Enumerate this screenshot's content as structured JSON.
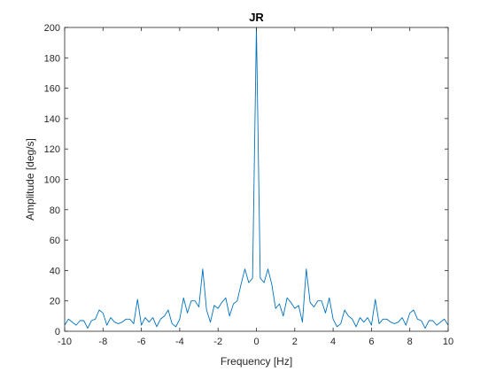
{
  "chart_data": {
    "type": "line",
    "title": "JR",
    "xlabel": "Frequency [Hz]",
    "ylabel": "Amplitude [deg/s]",
    "xlim": [
      -10,
      10
    ],
    "ylim": [
      0,
      200
    ],
    "grid": false,
    "x_ticks": [
      -10,
      -8,
      -6,
      -4,
      -2,
      0,
      2,
      4,
      6,
      8,
      10
    ],
    "y_ticks": [
      0,
      20,
      40,
      60,
      80,
      100,
      120,
      140,
      160,
      180,
      200
    ],
    "series": [
      {
        "color": "#0072BD",
        "x": [
          -10.0,
          -9.8,
          -9.6,
          -9.4,
          -9.2,
          -9.0,
          -8.8,
          -8.6,
          -8.4,
          -8.2,
          -8.0,
          -7.8,
          -7.6,
          -7.4,
          -7.2,
          -7.0,
          -6.8,
          -6.6,
          -6.4,
          -6.2,
          -6.0,
          -5.8,
          -5.6,
          -5.4,
          -5.2,
          -5.0,
          -4.8,
          -4.6,
          -4.4,
          -4.2,
          -4.0,
          -3.8,
          -3.6,
          -3.4,
          -3.2,
          -3.0,
          -2.8,
          -2.6,
          -2.4,
          -2.2,
          -2.0,
          -1.8,
          -1.6,
          -1.4,
          -1.2,
          -1.0,
          -0.8,
          -0.6,
          -0.4,
          -0.2,
          0.0,
          0.2,
          0.4,
          0.6,
          0.8,
          1.0,
          1.2,
          1.4,
          1.6,
          1.8,
          2.0,
          2.2,
          2.4,
          2.6,
          2.8,
          3.0,
          3.2,
          3.4,
          3.6,
          3.8,
          4.0,
          4.2,
          4.4,
          4.6,
          4.8,
          5.0,
          5.2,
          5.4,
          5.6,
          5.8,
          6.0,
          6.2,
          6.4,
          6.6,
          6.8,
          7.0,
          7.2,
          7.4,
          7.6,
          7.8,
          8.0,
          8.2,
          8.4,
          8.6,
          8.8,
          9.0,
          9.2,
          9.4,
          9.6,
          9.8,
          10.0
        ],
        "y": [
          4,
          8,
          6,
          4,
          7,
          7,
          2,
          7,
          8,
          14,
          12,
          4,
          9,
          6,
          5,
          6,
          8,
          8,
          5,
          21,
          4,
          9,
          6,
          9,
          3,
          8,
          10,
          14,
          5,
          3,
          8,
          22,
          12,
          20,
          20,
          16,
          41,
          14,
          6,
          17,
          15,
          19,
          22,
          10,
          18,
          20,
          31,
          41,
          32,
          35,
          200,
          35,
          32,
          41,
          31,
          15,
          18,
          10,
          22,
          19,
          15,
          17,
          6,
          41,
          19,
          16,
          20,
          20,
          12,
          22,
          8,
          3,
          5,
          14,
          10,
          8,
          3,
          9,
          6,
          9,
          4,
          21,
          5,
          8,
          8,
          6,
          5,
          6,
          9,
          4,
          12,
          14,
          8,
          7,
          2,
          7,
          7,
          4,
          6,
          8,
          4
        ]
      }
    ]
  }
}
